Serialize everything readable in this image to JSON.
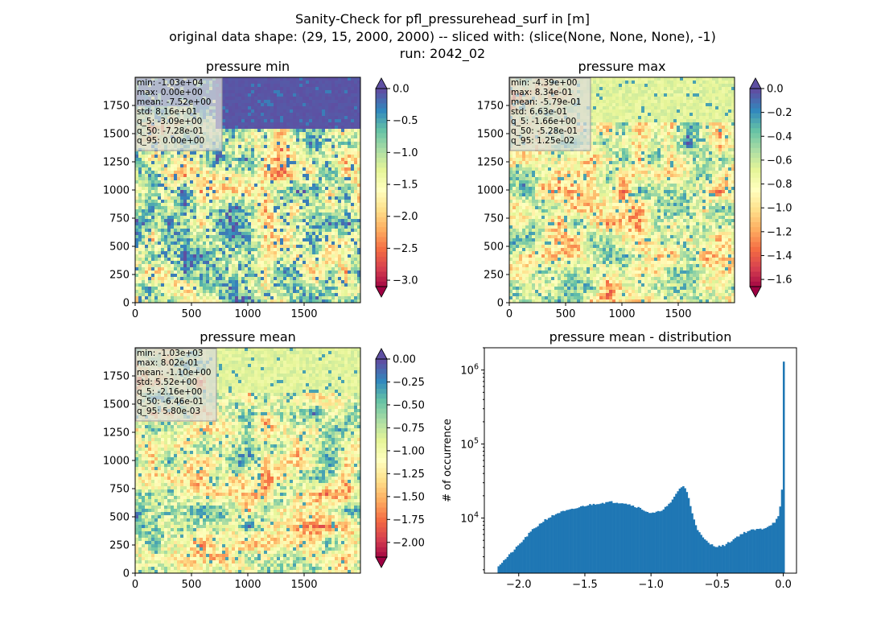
{
  "figure": {
    "title_lines": [
      "Sanity-Check for pfl_pressurehead_surf in [m]",
      "original data shape: (29, 15, 2000, 2000) -- sliced with: (slice(None, None, None), -1)",
      "run: 2042_02"
    ]
  },
  "colors": {
    "spectral": [
      "#9e0142",
      "#d53e4f",
      "#f46d43",
      "#fdae61",
      "#fee08b",
      "#ffffbf",
      "#e6f598",
      "#abdda4",
      "#66c2a5",
      "#3288bd",
      "#5e4fa2"
    ],
    "histogram_bar": "#1f77b4",
    "stats_box_bg": "#d9d9d9"
  },
  "chart_data": [
    {
      "type": "heatmap",
      "title": "pressure min",
      "xlabel": "",
      "ylabel": "",
      "x_ticks": [
        0,
        500,
        1000,
        1500
      ],
      "y_ticks": [
        0,
        250,
        500,
        750,
        1000,
        1250,
        1500,
        1750
      ],
      "xlim": [
        0,
        2000
      ],
      "ylim": [
        0,
        2000
      ],
      "colorbar": {
        "vmin": -3.1,
        "vmax": 0.0,
        "ticks": [
          "0.0",
          "-0.5",
          "-1.0",
          "-1.5",
          "-2.0",
          "-2.5",
          "-3.0"
        ],
        "tick_values": [
          0.0,
          -0.5,
          -1.0,
          -1.5,
          -2.0,
          -2.5,
          -3.0
        ],
        "extend": "both",
        "cmap": "Spectral"
      },
      "stats": [
        "min: -1.03e+04",
        "max: 0.00e+00",
        "mean: -7.52e+00",
        "std: 8.16e+01",
        "q_5: -3.09e+00",
        "q_50: -7.28e-01",
        "q_95: 0.00e+00"
      ]
    },
    {
      "type": "heatmap",
      "title": "pressure max",
      "xlabel": "",
      "ylabel": "",
      "x_ticks": [
        0,
        500,
        1000,
        1500
      ],
      "y_ticks": [
        0,
        250,
        500,
        750,
        1000,
        1250,
        1500,
        1750
      ],
      "xlim": [
        0,
        2000
      ],
      "ylim": [
        0,
        2000
      ],
      "colorbar": {
        "vmin": -1.66,
        "vmax": 0.0,
        "ticks": [
          "0.0",
          "-0.2",
          "-0.4",
          "-0.6",
          "-0.8",
          "-1.0",
          "-1.2",
          "-1.4",
          "-1.6"
        ],
        "tick_values": [
          0.0,
          -0.2,
          -0.4,
          -0.6,
          -0.8,
          -1.0,
          -1.2,
          -1.4,
          -1.6
        ],
        "extend": "both",
        "cmap": "Spectral"
      },
      "stats": [
        "min: -4.39e+00",
        "max: 8.34e-01",
        "mean: -5.79e-01",
        "std: 6.63e-01",
        "q_5: -1.66e+00",
        "q_50: -5.28e-01",
        "q_95: 1.25e-02"
      ]
    },
    {
      "type": "heatmap",
      "title": "pressure mean",
      "xlabel": "",
      "ylabel": "",
      "x_ticks": [
        0,
        500,
        1000,
        1500
      ],
      "y_ticks": [
        0,
        250,
        500,
        750,
        1000,
        1250,
        1500,
        1750
      ],
      "xlim": [
        0,
        2000
      ],
      "ylim": [
        0,
        2000
      ],
      "colorbar": {
        "vmin": -2.16,
        "vmax": 0.0,
        "ticks": [
          "0.00",
          "-0.25",
          "-0.50",
          "-0.75",
          "-1.00",
          "-1.25",
          "-1.50",
          "-1.75",
          "-2.00"
        ],
        "tick_values": [
          0.0,
          -0.25,
          -0.5,
          -0.75,
          -1.0,
          -1.25,
          -1.5,
          -1.75,
          -2.0
        ],
        "extend": "both",
        "cmap": "Spectral"
      },
      "stats": [
        "min: -1.03e+03",
        "max: 8.02e-01",
        "mean: -1.10e+00",
        "std: 5.52e+00",
        "q_5: -2.16e+00",
        "q_50: -6.46e-01",
        "q_95: 5.80e-03"
      ]
    },
    {
      "type": "bar",
      "title": "pressure mean - distribution",
      "xlabel": "",
      "ylabel": "# of occurrence",
      "log_y": true,
      "xlim": [
        -2.26,
        0.1
      ],
      "ylim": [
        1800,
        2000000
      ],
      "x_ticks": [
        -2.0,
        -1.5,
        -1.0,
        -0.5,
        0.0
      ],
      "x_tick_labels": [
        "−2.0",
        "−1.5",
        "−1.0",
        "−0.5",
        "0.0"
      ],
      "y_ticks": [
        10000,
        100000,
        1000000
      ],
      "y_tick_base": "10",
      "y_tick_exponents": [
        "4",
        "5",
        "6"
      ],
      "bin_range": [
        -2.16,
        0.01
      ],
      "histogram": {
        "knot_x": [
          -2.16,
          -2.1,
          -2.0,
          -1.9,
          -1.8,
          -1.7,
          -1.6,
          -1.5,
          -1.4,
          -1.3,
          -1.2,
          -1.1,
          -1.0,
          -0.95,
          -0.9,
          -0.85,
          -0.8,
          -0.76,
          -0.74,
          -0.72,
          -0.7,
          -0.67,
          -0.64,
          -0.6,
          -0.56,
          -0.52,
          -0.48,
          -0.45,
          -0.4,
          -0.35,
          -0.3,
          -0.25,
          -0.2,
          -0.15,
          -0.1,
          -0.06,
          -0.03,
          -0.01,
          0.0
        ],
        "knot_count": [
          2200,
          2800,
          4300,
          6800,
          9500,
          11800,
          13000,
          14700,
          15800,
          16500,
          16000,
          14000,
          11500,
          12000,
          13500,
          16000,
          23000,
          27500,
          25000,
          20000,
          14000,
          9000,
          6500,
          5200,
          4500,
          4200,
          4150,
          4250,
          4800,
          5600,
          6300,
          6800,
          7000,
          7200,
          8000,
          9000,
          11000,
          24000,
          1300000
        ]
      }
    }
  ]
}
